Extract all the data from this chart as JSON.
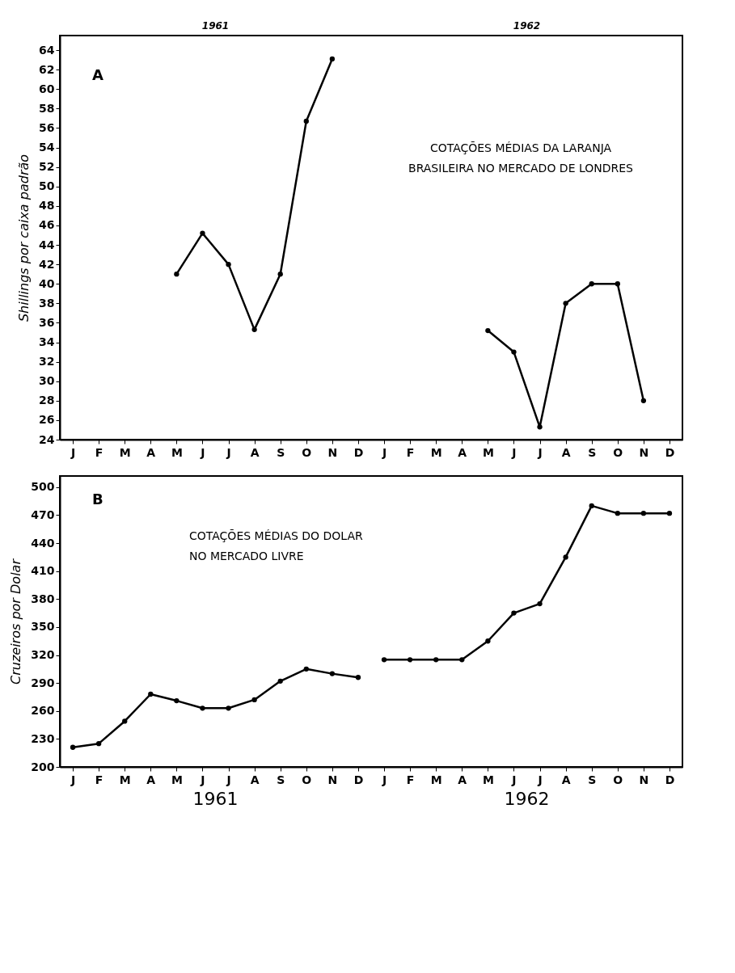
{
  "chart_data": [
    {
      "type": "line",
      "ylabel": "Shillings por caixa padrão",
      "categories": [
        "J",
        "F",
        "M",
        "A",
        "M",
        "J",
        "J",
        "A",
        "S",
        "O",
        "N",
        "D",
        "J",
        "F",
        "M",
        "A",
        "M",
        "J",
        "J",
        "A",
        "S",
        "O",
        "N",
        "D"
      ],
      "series": [
        {
          "color": "#000000",
          "values": [
            null,
            null,
            null,
            null,
            41,
            45.2,
            42,
            35.3,
            41,
            56.7,
            63.1,
            null,
            null,
            null,
            null,
            null,
            null,
            null,
            null,
            null,
            null,
            null,
            null,
            null
          ]
        },
        {
          "color": "#000000",
          "values": [
            null,
            null,
            null,
            null,
            null,
            null,
            null,
            null,
            null,
            null,
            null,
            null,
            null,
            null,
            null,
            null,
            35.2,
            33,
            25.3,
            38,
            40,
            40,
            28,
            null
          ]
        }
      ],
      "ylim": [
        24,
        65.5
      ],
      "yticks": [
        24,
        26,
        28,
        30,
        32,
        34,
        36,
        38,
        40,
        42,
        44,
        46,
        48,
        50,
        52,
        54,
        56,
        58,
        60,
        62,
        64
      ],
      "annotations": [
        "A",
        "COTAÇÕES MÉDIAS DA LARANJA",
        "BRASILEIRA NO MERCADO DE LONDRES",
        "1961",
        "1962"
      ],
      "marker": "circle",
      "line_style": "solid",
      "grid": false
    },
    {
      "type": "line",
      "ylabel": "Cruzeiros por Dolar",
      "categories": [
        "J",
        "F",
        "M",
        "A",
        "M",
        "J",
        "J",
        "A",
        "S",
        "O",
        "N",
        "D",
        "J",
        "F",
        "M",
        "A",
        "M",
        "J",
        "J",
        "A",
        "S",
        "O",
        "N",
        "D"
      ],
      "series": [
        {
          "color": "#000000",
          "values": [
            221,
            225,
            249,
            278,
            271,
            263,
            263,
            272,
            292,
            305,
            300,
            296,
            null,
            null,
            null,
            null,
            null,
            null,
            null,
            null,
            null,
            null,
            null,
            null
          ]
        },
        {
          "color": "#000000",
          "values": [
            null,
            null,
            null,
            null,
            null,
            null,
            null,
            null,
            null,
            null,
            null,
            null,
            315,
            315,
            315,
            315,
            335,
            365,
            375,
            425,
            480,
            472,
            472,
            472
          ]
        }
      ],
      "ylim": [
        200,
        512
      ],
      "yticks": [
        200,
        230,
        260,
        290,
        320,
        350,
        380,
        410,
        440,
        470,
        500
      ],
      "annotations": [
        "B",
        "COTAÇÕES MÉDIAS DO DOLAR",
        "NO MERCADO LIVRE",
        "1961",
        "1962"
      ],
      "marker": "circle",
      "line_style": "solid",
      "grid": false
    }
  ]
}
